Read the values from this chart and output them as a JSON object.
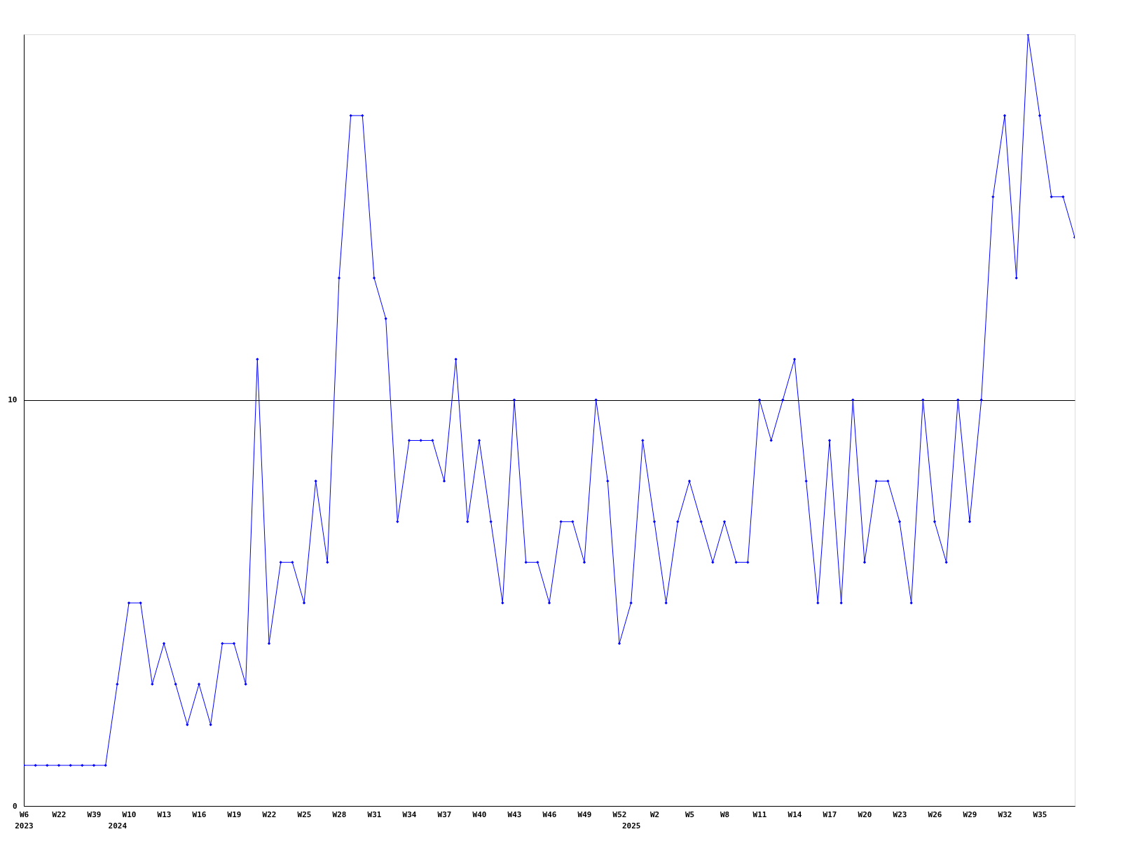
{
  "chart_data": {
    "type": "line",
    "categories": [
      "W6\n2023",
      null,
      null,
      "W22",
      null,
      null,
      "W39",
      null,
      "\n2024",
      "W10",
      null,
      null,
      "W13",
      null,
      null,
      "W16",
      null,
      null,
      "W19",
      null,
      null,
      "W22",
      null,
      null,
      "W25",
      null,
      null,
      "W28",
      null,
      null,
      "W31",
      null,
      null,
      "W34",
      null,
      null,
      "W37",
      null,
      null,
      "W40",
      null,
      null,
      "W43",
      null,
      null,
      "W46",
      null,
      null,
      "W49",
      null,
      null,
      "W52",
      "\n2025",
      null,
      "W2",
      null,
      null,
      "W5",
      null,
      null,
      "W8",
      null,
      null,
      "W11",
      null,
      null,
      "W14",
      null,
      null,
      "W17",
      null,
      null,
      "W20",
      null,
      null,
      "W23",
      null,
      null,
      "W26",
      null,
      null,
      "W29",
      null,
      null,
      "W32",
      null,
      null,
      "W35",
      null,
      null,
      null
    ],
    "series": [
      {
        "color": "#0000ff",
        "values": [
          1,
          1,
          1,
          1,
          1,
          1,
          1,
          1,
          3,
          5,
          5,
          3,
          4,
          3,
          2,
          3,
          2,
          4,
          4,
          3,
          11,
          4,
          6,
          6,
          5,
          8,
          6,
          13,
          17,
          17,
          13,
          12,
          7,
          9,
          9,
          9,
          8,
          11,
          7,
          9,
          7,
          5,
          10,
          6,
          6,
          5,
          7,
          7,
          6,
          10,
          8,
          4,
          5,
          9,
          7,
          5,
          7,
          8,
          7,
          6,
          7,
          6,
          6,
          10,
          9,
          10,
          11,
          8,
          5,
          9,
          5,
          10,
          6,
          8,
          8,
          7,
          5,
          10,
          7,
          6,
          10,
          7,
          10,
          15,
          17,
          13,
          19,
          17,
          15,
          15,
          14
        ]
      }
    ],
    "ylim": [
      0,
      19
    ],
    "yticks": [
      0,
      10
    ],
    "grid": "y",
    "marker": "diamond",
    "line_style": "solid"
  }
}
